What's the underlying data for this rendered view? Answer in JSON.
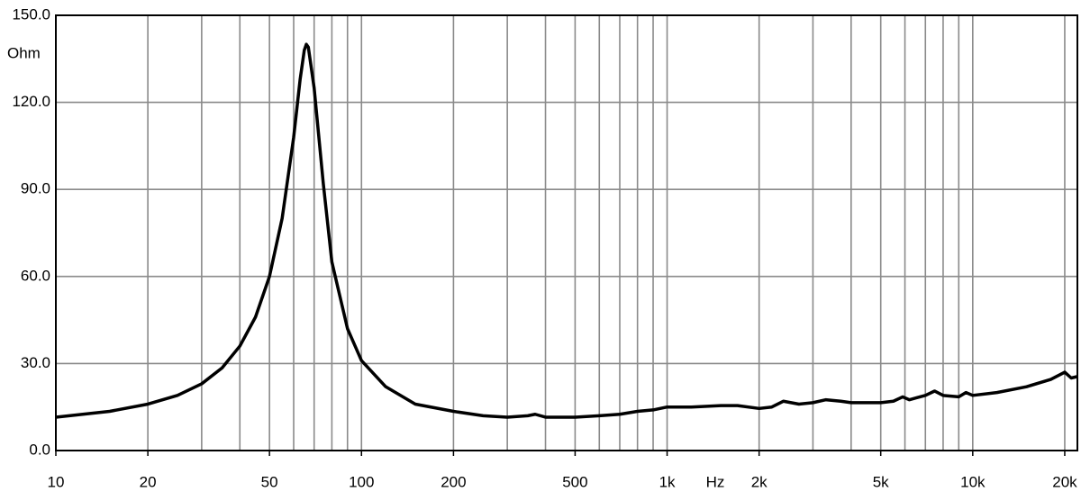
{
  "chart_data": {
    "type": "line",
    "y_label": "Ohm",
    "x_label": "Hz",
    "log_x": true,
    "grid": true,
    "color": "#000000",
    "xlim": [
      10,
      22000
    ],
    "ylim": [
      0,
      150
    ],
    "yticks": [
      {
        "value": 0,
        "label": "0.0"
      },
      {
        "value": 30,
        "label": "30.0"
      },
      {
        "value": 60,
        "label": "60.0"
      },
      {
        "value": 90,
        "label": "90.0"
      },
      {
        "value": 120,
        "label": "120.0"
      },
      {
        "value": 150,
        "label": "150.0"
      }
    ],
    "xticks": [
      10,
      20,
      50,
      100,
      200,
      500,
      {
        "value": 1000,
        "label": "1k"
      },
      {
        "value": 2000,
        "label": "2k"
      },
      {
        "value": 5000,
        "label": "5k"
      },
      {
        "value": 10000,
        "label": "10k"
      },
      {
        "value": 20000,
        "label": "20k"
      }
    ],
    "xgrid": [
      20,
      30,
      40,
      50,
      60,
      70,
      80,
      90,
      100,
      200,
      300,
      400,
      500,
      600,
      700,
      800,
      900,
      1000,
      2000,
      3000,
      4000,
      5000,
      6000,
      7000,
      8000,
      9000,
      10000,
      20000
    ],
    "x": [
      10,
      15,
      20,
      25,
      30,
      35,
      40,
      45,
      50,
      55,
      60,
      63,
      65,
      66,
      67,
      70,
      75,
      80,
      90,
      100,
      120,
      150,
      200,
      250,
      300,
      350,
      370,
      400,
      500,
      600,
      700,
      800,
      900,
      1000,
      1200,
      1500,
      1700,
      2000,
      2200,
      2400,
      2700,
      3000,
      3300,
      3700,
      4000,
      5000,
      5500,
      5900,
      6200,
      7000,
      7500,
      8000,
      9000,
      9500,
      10000,
      12000,
      15000,
      18000,
      20000,
      21000,
      22000
    ],
    "values": [
      11.5,
      13.5,
      16,
      19,
      23,
      28.5,
      36,
      46,
      60,
      80,
      108,
      128,
      138,
      140,
      139,
      125,
      92,
      65,
      42,
      31,
      22,
      16,
      13.5,
      12,
      11.5,
      12,
      12.5,
      11.5,
      11.5,
      12,
      12.5,
      13.5,
      14,
      15,
      15,
      15.5,
      15.5,
      14.5,
      15,
      17,
      16,
      16.5,
      17.5,
      17,
      16.5,
      16.5,
      17,
      18.5,
      17.5,
      19,
      20.5,
      19,
      18.5,
      20,
      19,
      20,
      22,
      24.5,
      27,
      25,
      25.5
    ]
  }
}
